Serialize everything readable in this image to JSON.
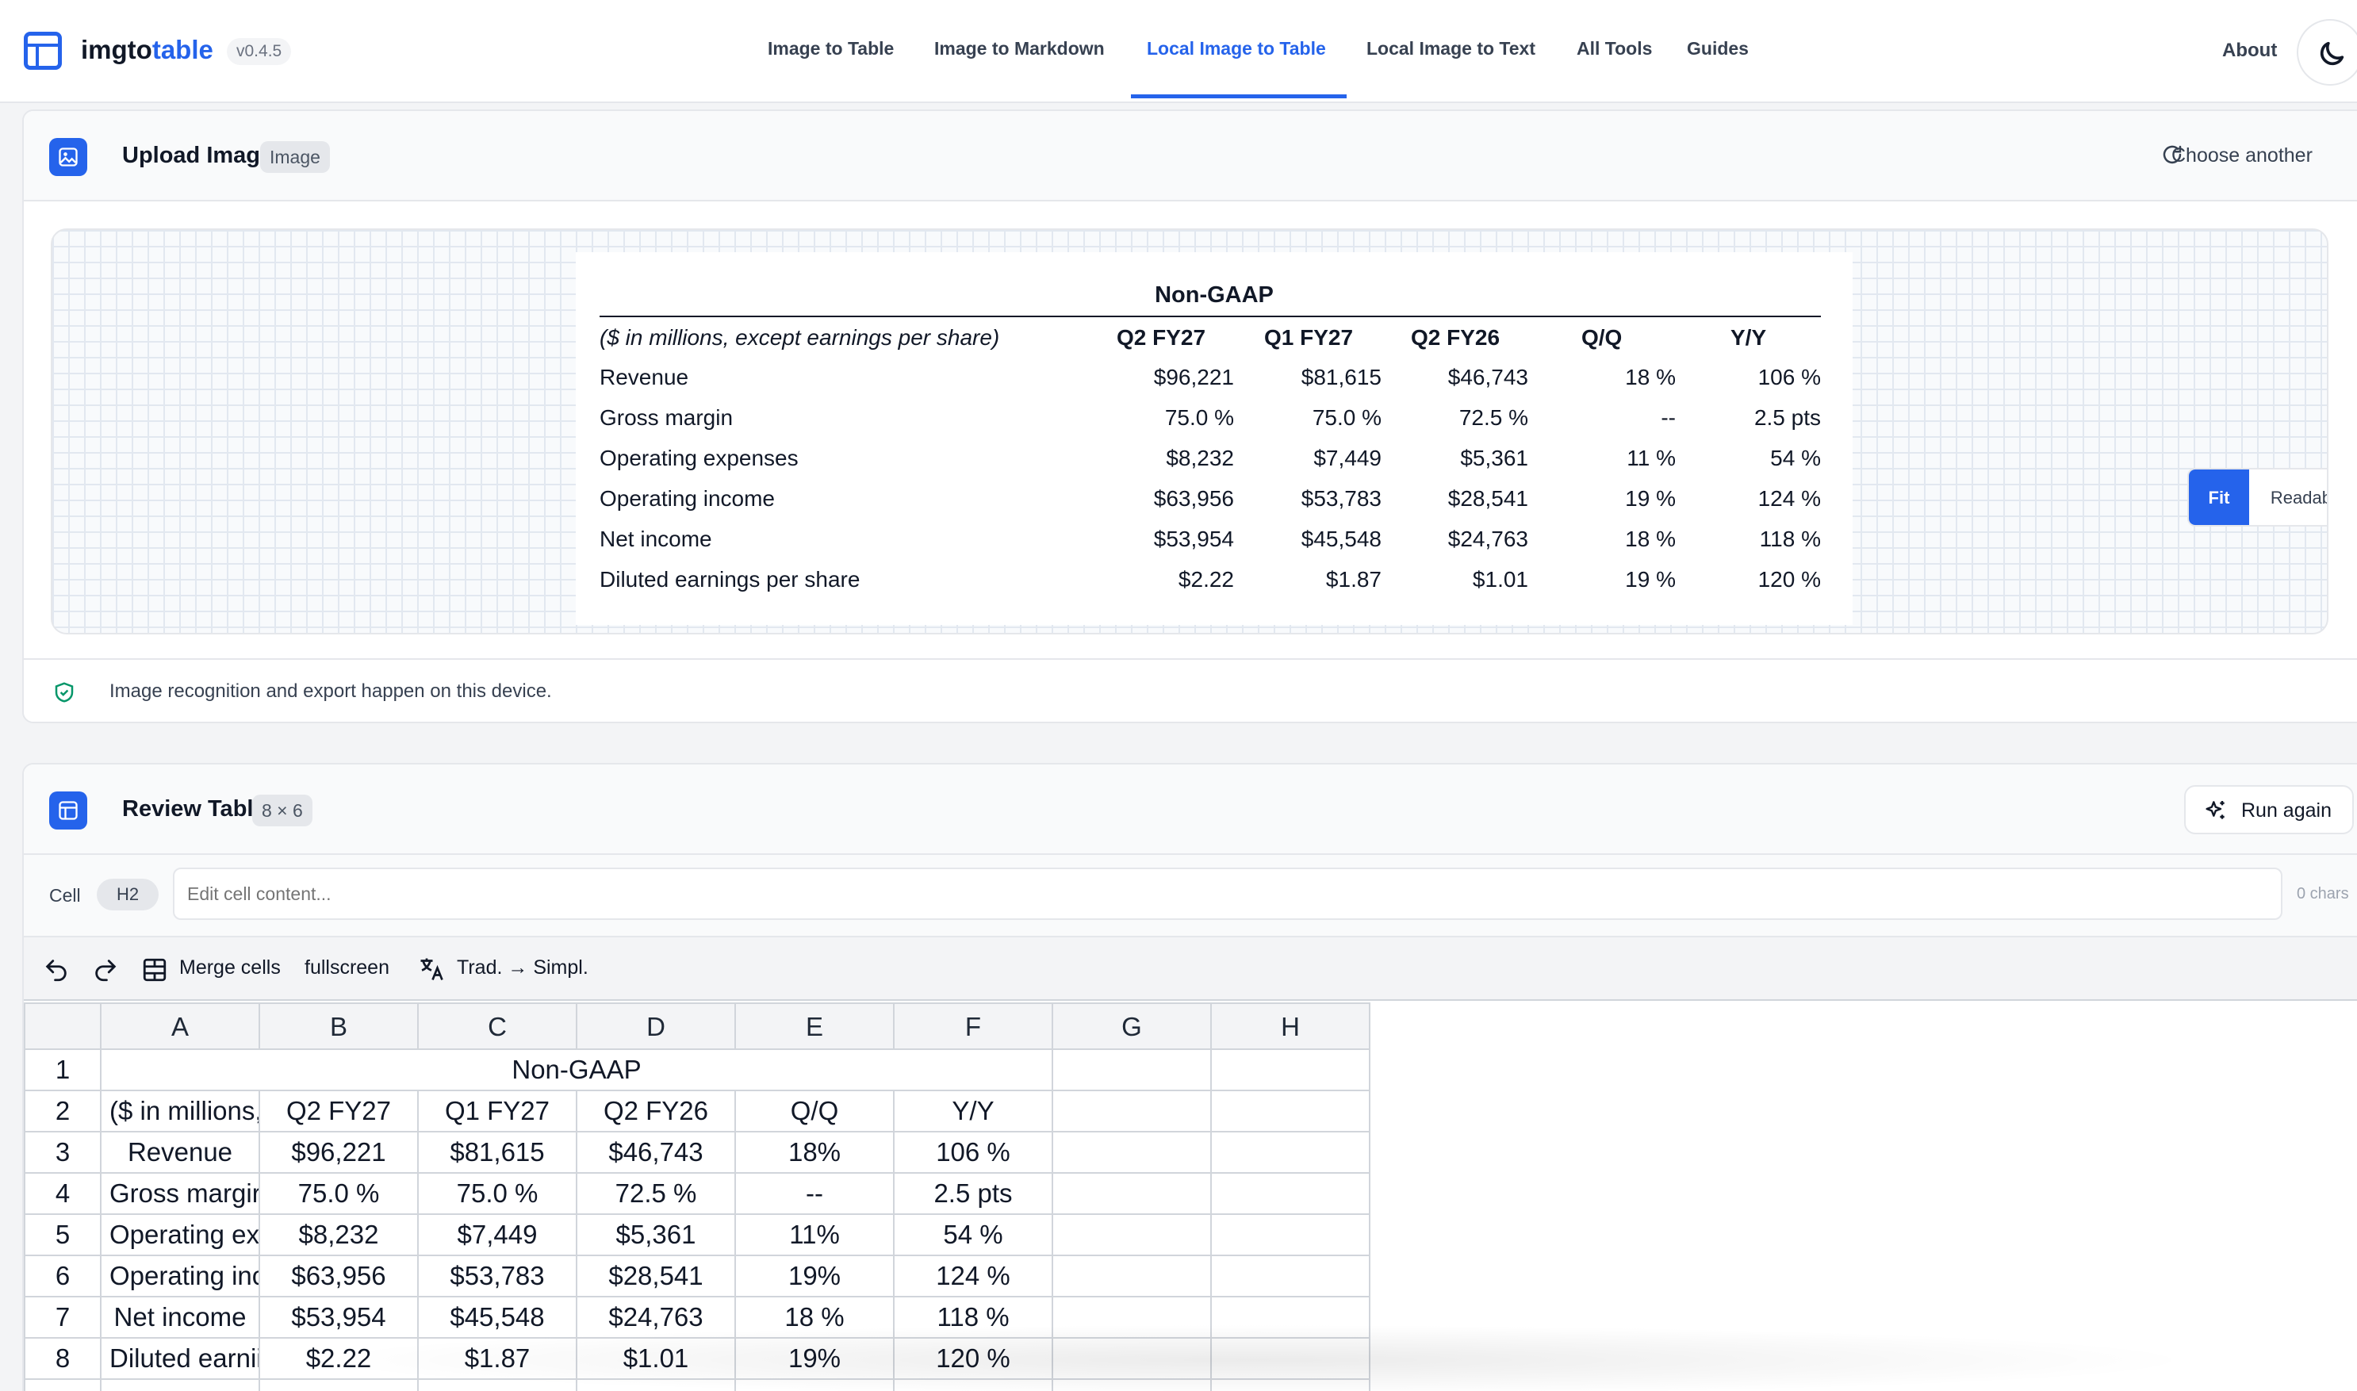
{
  "header": {
    "brand_main": "imgto",
    "brand_accent": "table",
    "version": "v0.4.5",
    "nav": [
      "Image to Table",
      "Image to Markdown",
      "Local Image to Table",
      "Local Image to Text",
      "All Tools",
      "Guides"
    ],
    "active_nav": "Local Image to Table",
    "about": "About",
    "theme_icon": "moon-icon"
  },
  "upload": {
    "title": "Upload Image",
    "badge": "Image",
    "choose_another": "Choose another",
    "view_fit": "Fit",
    "view_readable": "Readable",
    "privacy_note": "Image recognition and export happen on this device."
  },
  "source_table": {
    "title": "Non-GAAP",
    "header": [
      "($ in millions, except earnings per share)",
      "Q2 FY27",
      "Q1 FY27",
      "Q2 FY26",
      "Q/Q",
      "Y/Y"
    ],
    "rows": [
      [
        "Revenue",
        "$96,221",
        "$81,615",
        "$46,743",
        "18 %",
        "106 %"
      ],
      [
        "Gross margin",
        "75.0 %",
        "75.0 %",
        "72.5 %",
        "--",
        "2.5 pts"
      ],
      [
        "Operating expenses",
        "$8,232",
        "$7,449",
        "$5,361",
        "11 %",
        "54 %"
      ],
      [
        "Operating income",
        "$63,956",
        "$53,783",
        "$28,541",
        "19 %",
        "124 %"
      ],
      [
        "Net income",
        "$53,954",
        "$45,548",
        "$24,763",
        "18 %",
        "118 %"
      ],
      [
        "Diluted earnings per share",
        "$2.22",
        "$1.87",
        "$1.01",
        "19 %",
        "120 %"
      ]
    ]
  },
  "review": {
    "title": "Review Table",
    "dims": "8 × 6",
    "run_again": "Run again",
    "cell_label": "Cell",
    "cell_ref": "H2",
    "cell_placeholder": "Edit cell content...",
    "chars": "0 chars",
    "toolbar": {
      "merge": "Merge cells",
      "fullscreen": "fullscreen",
      "convert": "Trad. → Simpl."
    }
  },
  "sheet": {
    "columns": [
      "A",
      "B",
      "C",
      "D",
      "E",
      "F",
      "G",
      "H"
    ],
    "row_numbers": [
      "1",
      "2",
      "3",
      "4",
      "5",
      "6",
      "7",
      "8"
    ],
    "merged_title": "Non-GAAP",
    "rows": [
      [
        "($ in millions,",
        "Q2 FY27",
        "Q1 FY27",
        "Q2 FY26",
        "Q/Q",
        "Y/Y",
        "",
        ""
      ],
      [
        "Revenue",
        "$96,221",
        "$81,615",
        "$46,743",
        "18%",
        "106 %",
        "",
        ""
      ],
      [
        "Gross margir",
        "75.0 %",
        "75.0 %",
        "72.5 %",
        "--",
        "2.5 pts",
        "",
        ""
      ],
      [
        "Operating ex",
        "$8,232",
        "$7,449",
        "$5,361",
        "11%",
        "54 %",
        "",
        ""
      ],
      [
        "Operating inc",
        "$63,956",
        "$53,783",
        "$28,541",
        "19%",
        "124 %",
        "",
        ""
      ],
      [
        "Net income",
        "$53,954",
        "$45,548",
        "$24,763",
        "18 %",
        "118 %",
        "",
        ""
      ],
      [
        "Diluted earnii",
        "$2.22",
        "$1.87",
        "$1.01",
        "19%",
        "120 %",
        "",
        ""
      ]
    ]
  },
  "colors": {
    "accent": "#2563eb",
    "privacy_icon": "#059669"
  }
}
